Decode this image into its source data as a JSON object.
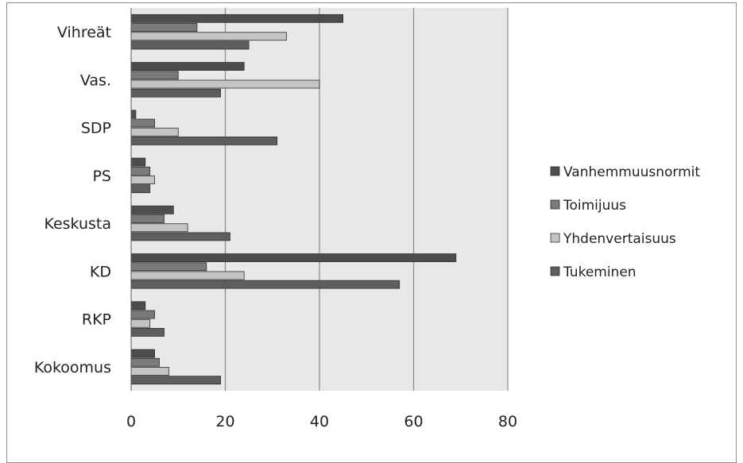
{
  "chart_data": {
    "type": "bar",
    "orientation": "horizontal",
    "categories": [
      "Vihreät",
      "Vas.",
      "SDP",
      "PS",
      "Keskusta",
      "KD",
      "RKP",
      "Kokoomus"
    ],
    "series": [
      {
        "name": "Vanhemmuusnormit",
        "values": [
          45,
          24,
          1,
          3,
          9,
          69,
          3,
          5
        ],
        "color": "#4d4d4d"
      },
      {
        "name": "Toimijuus",
        "values": [
          14,
          10,
          5,
          4,
          7,
          16,
          5,
          6
        ],
        "color": "#7a7a7a"
      },
      {
        "name": "Yhdenvertaisuus",
        "values": [
          33,
          40,
          10,
          5,
          12,
          24,
          4,
          8
        ],
        "color": "#c4c4c4"
      },
      {
        "name": "Tukeminen",
        "values": [
          25,
          19,
          31,
          4,
          21,
          57,
          7,
          19
        ],
        "color": "#5e5e5e"
      }
    ],
    "xticks": [
      0,
      20,
      40,
      60,
      80
    ],
    "xlim": [
      0,
      80
    ],
    "grid": true,
    "plot_background": "#e8e8e8",
    "legend_position": "right",
    "title": "",
    "xlabel": "",
    "ylabel": ""
  }
}
